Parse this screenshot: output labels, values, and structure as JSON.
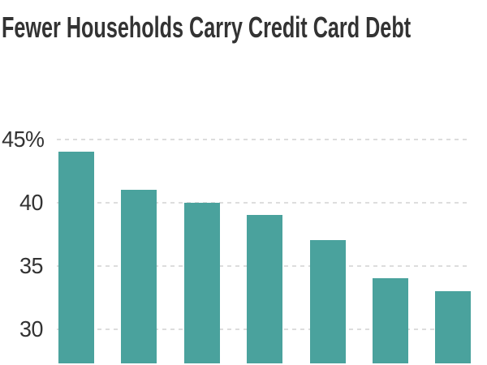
{
  "chart_data": {
    "type": "bar",
    "title": "Fewer Households Carry Credit Card Debt",
    "values": [
      44,
      41,
      40,
      39,
      37,
      34,
      33
    ],
    "unit": "%",
    "xlabel": "",
    "ylabel": "",
    "x_axis_labels_visible": false,
    "yticks": [
      {
        "value": 45,
        "label": "45%"
      },
      {
        "value": 40,
        "label": "40"
      },
      {
        "value": 35,
        "label": "35"
      },
      {
        "value": 30,
        "label": "30"
      }
    ],
    "ylim_visible": [
      27.5,
      47
    ],
    "grid": "horizontal-dashed",
    "legend": "none",
    "baseline_clipped_at_bottom_edge": true
  },
  "colors": {
    "bar": "#4AA29D",
    "grid": "#DDDDDD",
    "title_text": "#333333",
    "axis_text": "#333333",
    "background": "#FFFFFF"
  }
}
